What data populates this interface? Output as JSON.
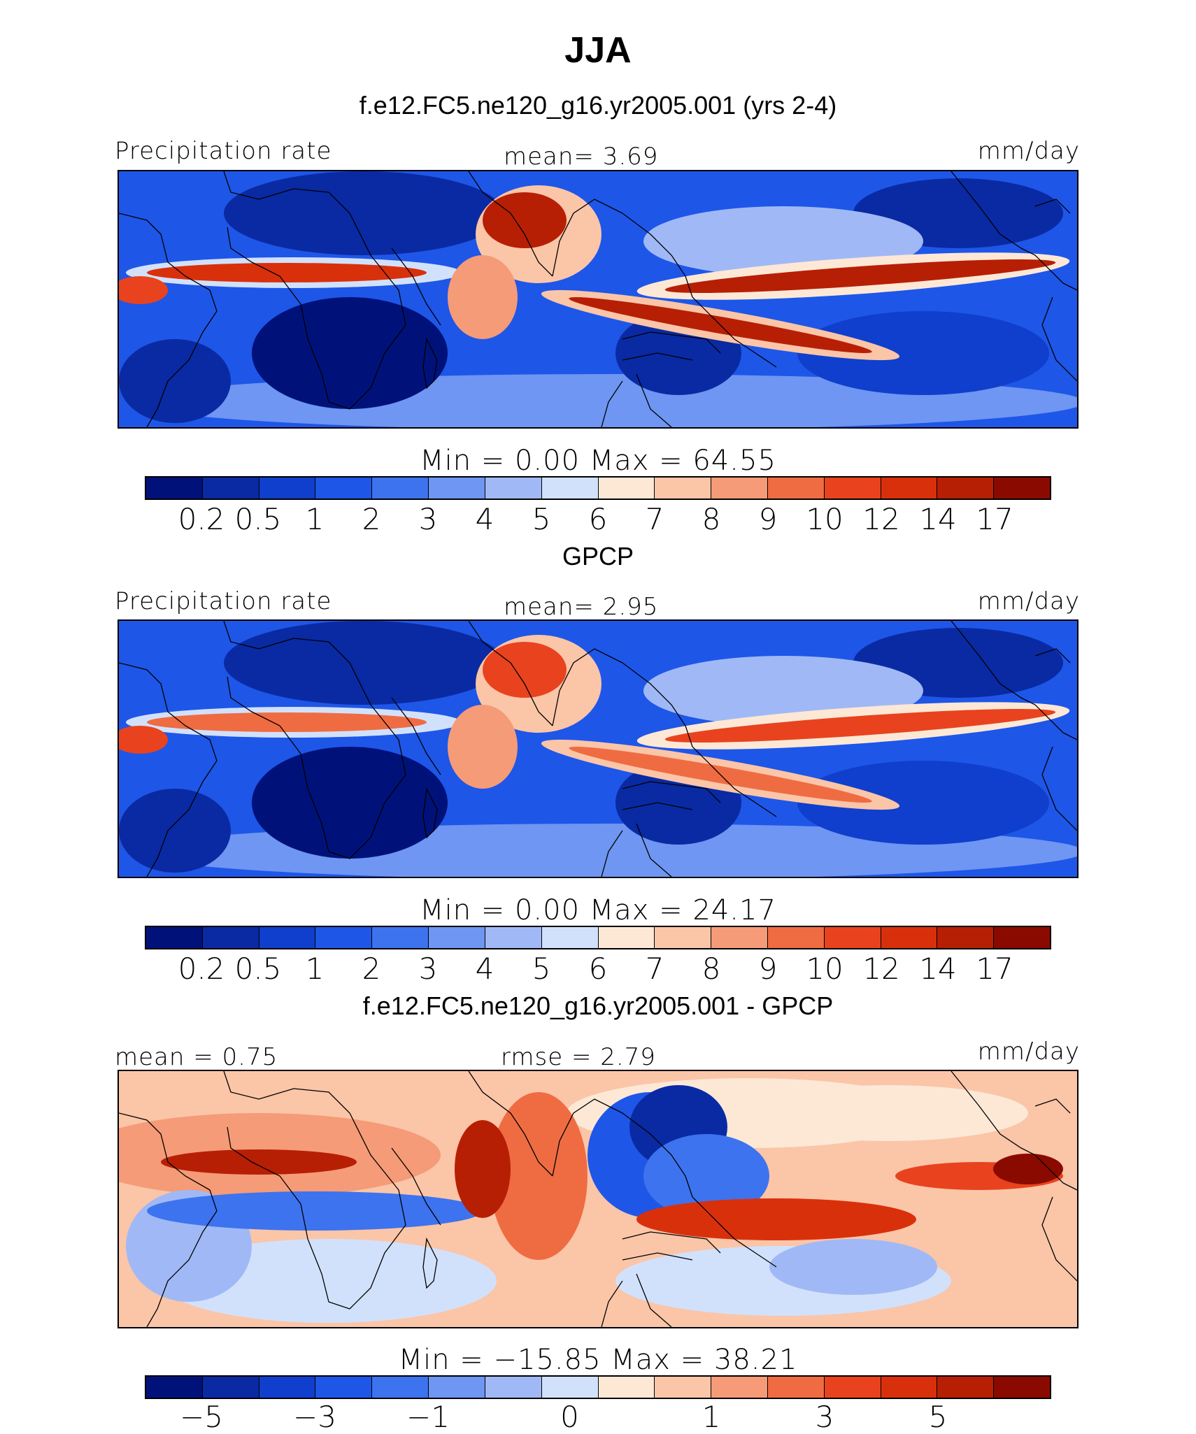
{
  "title": "JJA",
  "panels": [
    {
      "heading": "f.e12.FC5.ne120_g16.yr2005.001 (yrs 2-4)",
      "left_label": "Precipitation  rate",
      "mid_label": "mean=     3.69",
      "right_label": "mm/day",
      "stats": "Min   =       0.00  Max   =     64.55",
      "map_kind": "model",
      "colorbar": {
        "colors": [
          "#00127a",
          "#0a2aa3",
          "#0f3fcc",
          "#1e56e8",
          "#3d73ee",
          "#6e96f2",
          "#a0b9f6",
          "#d2e1fb",
          "#fde8d6",
          "#fbc5a8",
          "#f59b77",
          "#ef6c43",
          "#e8431e",
          "#d9300c",
          "#b71f05",
          "#8b0a00"
        ],
        "tick_labels": [
          "0.2",
          "0.5",
          "1",
          "2",
          "3",
          "4",
          "5",
          "6",
          "7",
          "8",
          "9",
          "10",
          "12",
          "14",
          "17"
        ]
      }
    },
    {
      "heading": "GPCP",
      "left_label": "Precipitation  rate",
      "mid_label": "mean=     2.95",
      "right_label": "mm/day",
      "stats": "Min   =       0.00  Max   =     24.17",
      "map_kind": "obs",
      "colorbar": {
        "colors": [
          "#00127a",
          "#0a2aa3",
          "#0f3fcc",
          "#1e56e8",
          "#3d73ee",
          "#6e96f2",
          "#a0b9f6",
          "#d2e1fb",
          "#fde8d6",
          "#fbc5a8",
          "#f59b77",
          "#ef6c43",
          "#e8431e",
          "#d9300c",
          "#b71f05",
          "#8b0a00"
        ],
        "tick_labels": [
          "0.2",
          "0.5",
          "1",
          "2",
          "3",
          "4",
          "5",
          "6",
          "7",
          "8",
          "9",
          "10",
          "12",
          "14",
          "17"
        ]
      }
    },
    {
      "heading": "f.e12.FC5.ne120_g16.yr2005.001 - GPCP",
      "left_label": "mean   =     0.75",
      "mid_label": "rmse   =     2.79",
      "right_label": "mm/day",
      "stats": "Min   =  −15.85  Max   =     38.21",
      "map_kind": "diff",
      "colorbar": {
        "colors": [
          "#00127a",
          "#0a2aa3",
          "#0f3fcc",
          "#1e56e8",
          "#3d73ee",
          "#6e96f2",
          "#a0b9f6",
          "#d2e1fb",
          "#fde8d6",
          "#fbc5a8",
          "#f59b77",
          "#ef6c43",
          "#e8431e",
          "#d9300c",
          "#b71f05",
          "#8b0a00"
        ],
        "tick_labels": [
          "−5",
          "−3",
          "−1",
          "0",
          "1",
          "3",
          "5"
        ]
      }
    }
  ],
  "chart_data": {
    "type": "heatmap",
    "title": "JJA",
    "units": "mm/day",
    "maps": [
      {
        "name": "f.e12.FC5.ne120_g16.yr2005.001 (yrs 2-4)",
        "mean": 3.69,
        "min": 0.0,
        "max": 64.55,
        "contour_levels": [
          0.2,
          0.5,
          1,
          2,
          3,
          4,
          5,
          6,
          7,
          8,
          9,
          10,
          12,
          14,
          17
        ]
      },
      {
        "name": "GPCP",
        "mean": 2.95,
        "min": 0.0,
        "max": 24.17,
        "contour_levels": [
          0.2,
          0.5,
          1,
          2,
          3,
          4,
          5,
          6,
          7,
          8,
          9,
          10,
          12,
          14,
          17
        ]
      },
      {
        "name": "f.e12.FC5.ne120_g16.yr2005.001 - GPCP",
        "mean": 0.75,
        "rmse": 2.79,
        "min": -15.85,
        "max": 38.21,
        "contour_levels": [
          -5,
          -3,
          -1,
          0,
          1,
          3,
          5
        ]
      }
    ]
  }
}
